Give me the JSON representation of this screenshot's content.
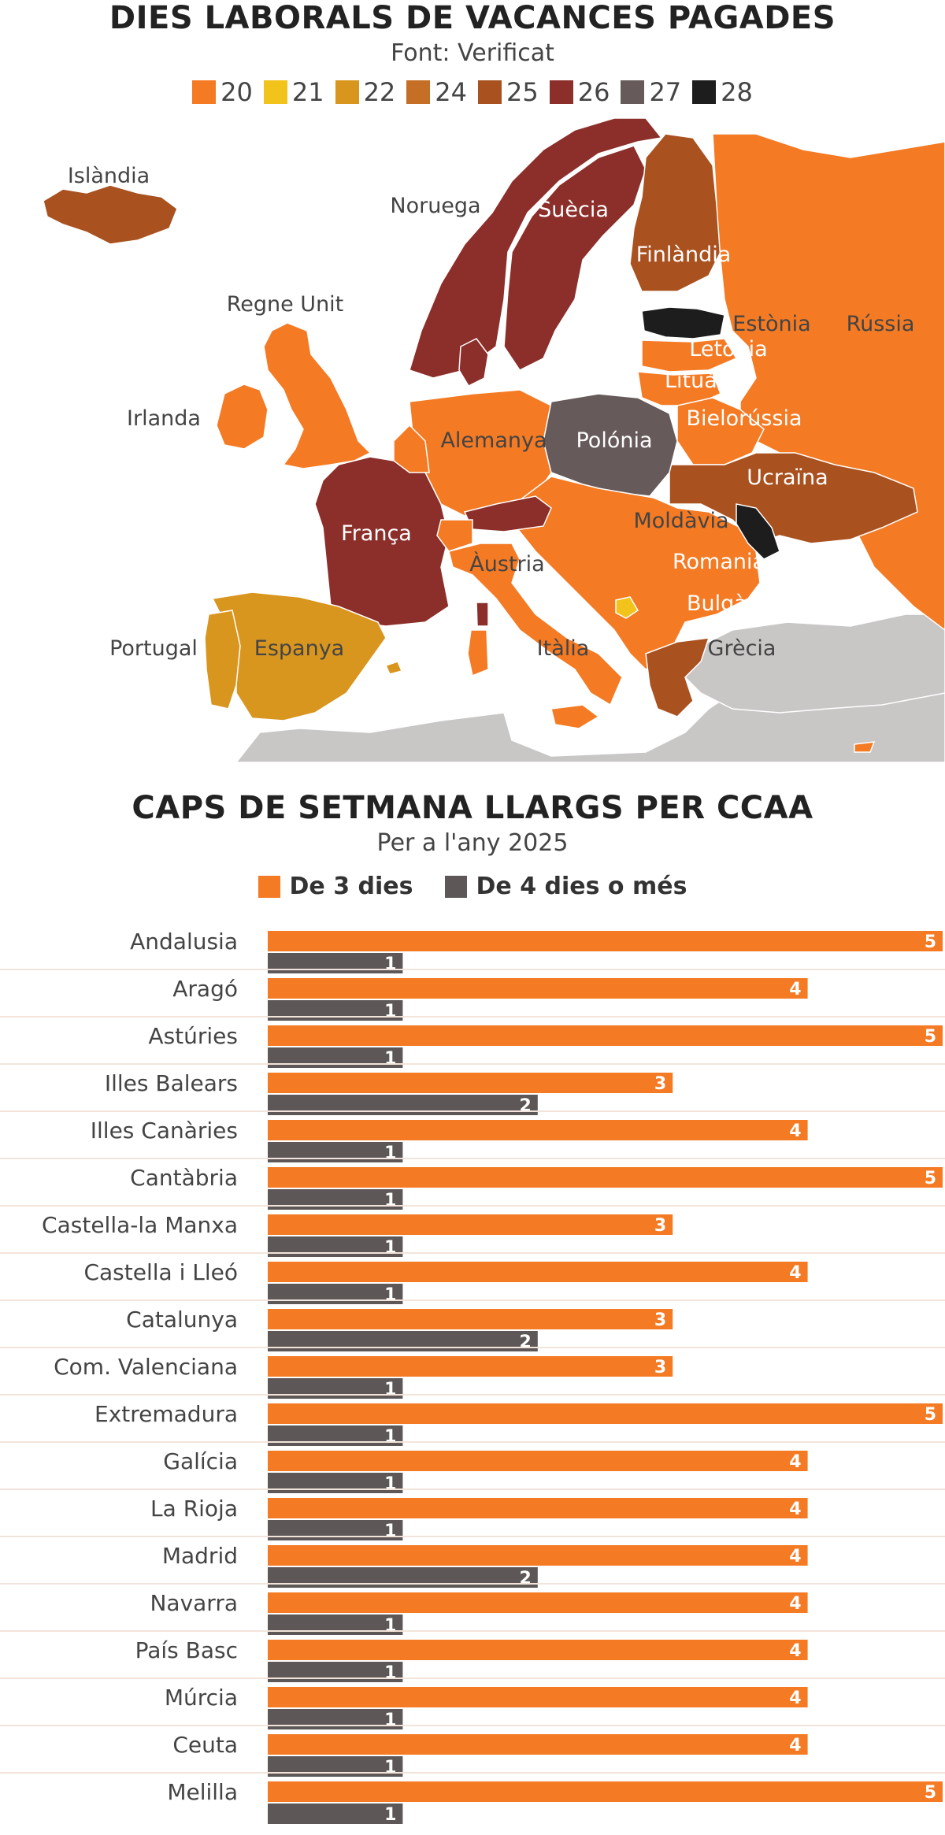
{
  "chart_data": [
    {
      "type": "map",
      "title": "DIES LABORALS DE VACANCES PAGADES",
      "subtitle": "Font: Verificat",
      "legend": [
        {
          "label": "20",
          "color": "#f47a24"
        },
        {
          "label": "21",
          "color": "#f2c31a"
        },
        {
          "label": "22",
          "color": "#d9961f"
        },
        {
          "label": "24",
          "color": "#c56e25"
        },
        {
          "label": "25",
          "color": "#a9511f"
        },
        {
          "label": "26",
          "color": "#8c2e2a"
        },
        {
          "label": "27",
          "color": "#675a5a"
        },
        {
          "label": "28",
          "color": "#1d1d1d"
        }
      ],
      "other_color": "#c9c6c6",
      "countries": [
        {
          "name": "Islàndia",
          "days": 25
        },
        {
          "name": "Noruega",
          "days": 26
        },
        {
          "name": "Suècia",
          "days": 26
        },
        {
          "name": "Finlàndia",
          "days": 25
        },
        {
          "name": "Estònia",
          "days": 28
        },
        {
          "name": "Rússia",
          "days": 20
        },
        {
          "name": "Letònia",
          "days": 20
        },
        {
          "name": "Lituània",
          "days": 20
        },
        {
          "name": "Regne Unit",
          "days": 20
        },
        {
          "name": "Irlanda",
          "days": 20
        },
        {
          "name": "Alemanya",
          "days": 20
        },
        {
          "name": "Polónia",
          "days": 27
        },
        {
          "name": "Bielorússia",
          "days": 20
        },
        {
          "name": "Ucraïna",
          "days": 25
        },
        {
          "name": "França",
          "days": 26
        },
        {
          "name": "Moldàvia",
          "days": 28
        },
        {
          "name": "Àustria",
          "days": 26
        },
        {
          "name": "Romania",
          "days": 20
        },
        {
          "name": "Bulgària",
          "days": 20
        },
        {
          "name": "Portugal",
          "days": 22
        },
        {
          "name": "Espanya",
          "days": 22
        },
        {
          "name": "Itàlia",
          "days": 20
        },
        {
          "name": "Grècia",
          "days": 25
        }
      ]
    },
    {
      "type": "bar",
      "title": "CAPS DE SETMANA LLARGS PER CCAA",
      "subtitle": "Per a l'any 2025",
      "xlim": [
        0,
        5
      ],
      "categories": [
        "Andalusia",
        "Aragó",
        "Astúries",
        "Illes Balears",
        "Illes Canàries",
        "Cantàbria",
        "Castella-la Manxa",
        "Castella i Lleó",
        "Catalunya",
        "Com. Valenciana",
        "Extremadura",
        "Galícia",
        "La Rioja",
        "Madrid",
        "Navarra",
        "País Basc",
        "Múrcia",
        "Ceuta",
        "Melilla"
      ],
      "series": [
        {
          "name": "De 3 dies",
          "color": "#f47a24",
          "values": [
            5,
            4,
            5,
            3,
            4,
            5,
            3,
            4,
            3,
            3,
            5,
            4,
            4,
            4,
            4,
            4,
            4,
            4,
            5
          ]
        },
        {
          "name": "De 4 dies o més",
          "color": "#5d5757",
          "values": [
            1,
            1,
            1,
            2,
            1,
            1,
            1,
            1,
            2,
            1,
            1,
            1,
            1,
            2,
            1,
            1,
            1,
            1,
            1
          ]
        }
      ]
    }
  ]
}
